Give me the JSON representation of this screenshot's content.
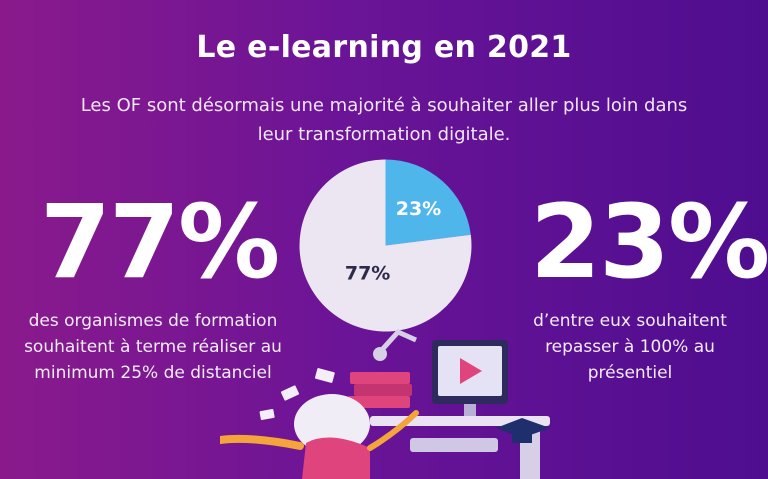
{
  "header": {
    "title": "Le e-learning en 2021",
    "subtitle": "Les OF sont désormais une majorité à souhaiter aller plus loin dans leur transformation digitale."
  },
  "stats": {
    "left": {
      "value": "77%",
      "description": "des organismes de formation souhaitent à terme réaliser au minimum 25% de distanciel"
    },
    "right": {
      "value": "23%",
      "description": "d’entre eux souhaitent repasser à 100% au présentiel"
    }
  },
  "colors": {
    "pie_main": "#ebe6f1",
    "pie_slice": "#4fb6ec",
    "label_dark": "#2e2a4a",
    "label_light": "#ffffff"
  },
  "chart_data": {
    "type": "pie",
    "slices": [
      {
        "label": "77%",
        "value": 77
      },
      {
        "label": "23%",
        "value": 23
      }
    ]
  }
}
